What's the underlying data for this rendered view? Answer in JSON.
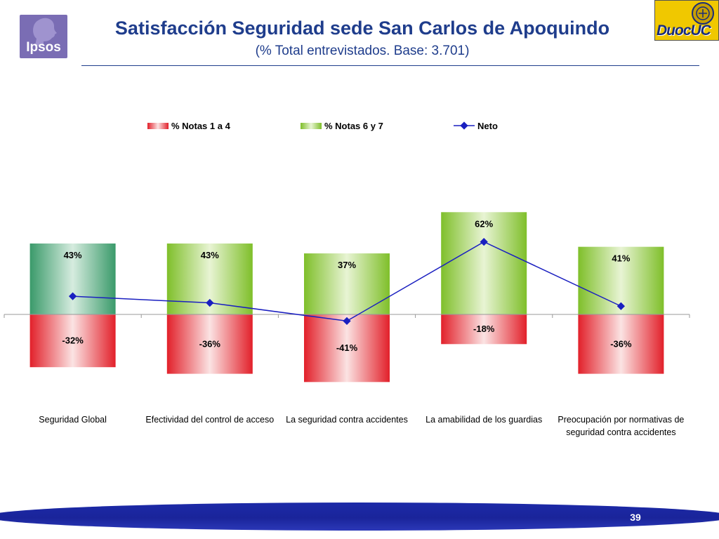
{
  "header": {
    "title": "Satisfacción Seguridad sede San Carlos de Apoquindo",
    "subtitle": "(% Total entrevistados. Base: 3.701)",
    "logo_left": "Ipsos",
    "logo_right": "DuocUC"
  },
  "chart_data": {
    "type": "bar",
    "categories": [
      [
        "Seguridad Global"
      ],
      [
        "Efectividad del control de acceso"
      ],
      [
        "La seguridad contra accidentes"
      ],
      [
        "La amabilidad de los guardias"
      ],
      [
        "Preocupación por normativas de",
        "seguridad contra accidentes"
      ]
    ],
    "series": [
      {
        "name": "% Notas 1 a 4",
        "type": "bar",
        "values": [
          -32,
          -36,
          -41,
          -18,
          -36
        ],
        "labels": [
          "-32%",
          "-36%",
          "-41%",
          "-18%",
          "-36%"
        ],
        "color": "#e21f26"
      },
      {
        "name": "% Notas 6 y 7",
        "type": "bar",
        "values": [
          43,
          43,
          37,
          62,
          41
        ],
        "labels": [
          "43%",
          "43%",
          "37%",
          "62%",
          "41%"
        ],
        "color": "#8cc63e"
      },
      {
        "name": "Neto",
        "type": "line",
        "values": [
          11,
          7,
          -4,
          44,
          5
        ],
        "color": "#1a1fc0"
      }
    ],
    "highlight_color": "#3a9a6a",
    "ylim": [
      -50,
      70
    ],
    "grid": false,
    "legend_position": "top"
  },
  "footer": {
    "page_number": "39"
  }
}
